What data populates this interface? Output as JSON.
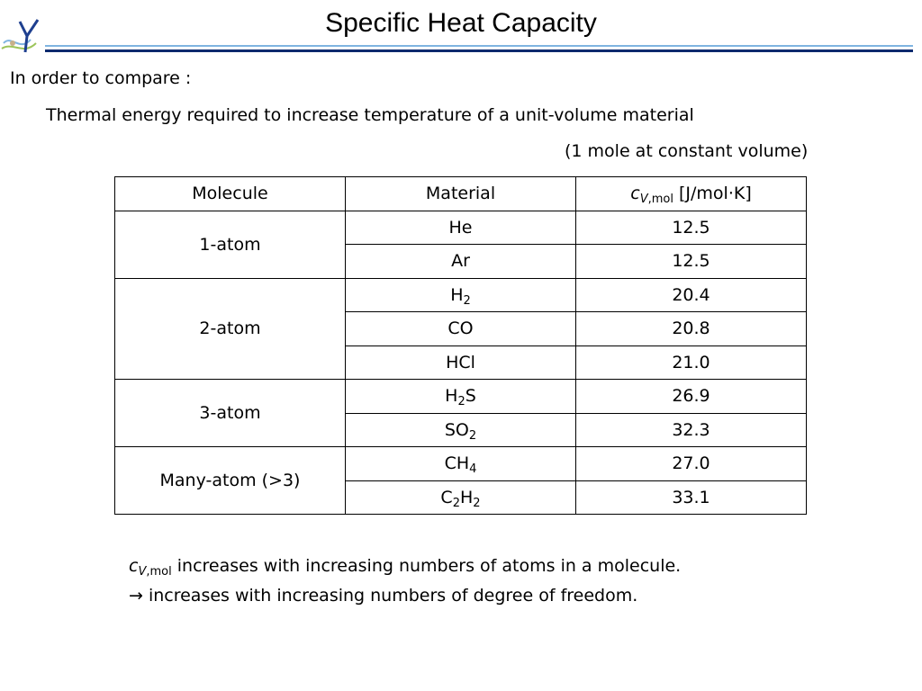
{
  "header": {
    "title": "Specific Heat Capacity",
    "rule_color_light": "#7fb4e0",
    "rule_color_dark": "#0d2a6e"
  },
  "intro": {
    "line1": "In order to compare :",
    "line2": "Thermal energy required to increase temperature of a unit-volume material",
    "line3": "(1 mole at constant volume)"
  },
  "table": {
    "headers": {
      "molecule": "Molecule",
      "material": "Material",
      "cv_symbol": "c",
      "cv_subscript": "V,mol",
      "cv_unit": " [J/mol·K]"
    },
    "groups": [
      {
        "molecule": "1-atom",
        "rows": [
          {
            "material_parts": [
              {
                "t": "He"
              }
            ],
            "value": "12.5"
          },
          {
            "material_parts": [
              {
                "t": "Ar"
              }
            ],
            "value": "12.5"
          }
        ]
      },
      {
        "molecule": "2-atom",
        "rows": [
          {
            "material_parts": [
              {
                "t": "H"
              },
              {
                "s": "2"
              }
            ],
            "value": "20.4"
          },
          {
            "material_parts": [
              {
                "t": "CO"
              }
            ],
            "value": "20.8"
          },
          {
            "material_parts": [
              {
                "t": "HCl"
              }
            ],
            "value": "21.0"
          }
        ]
      },
      {
        "molecule": "3-atom",
        "rows": [
          {
            "material_parts": [
              {
                "t": "H"
              },
              {
                "s": "2"
              },
              {
                "t": "S"
              }
            ],
            "value": "26.9"
          },
          {
            "material_parts": [
              {
                "t": "SO"
              },
              {
                "s": "2"
              }
            ],
            "value": "32.3"
          }
        ]
      },
      {
        "molecule": "Many-atom (>3)",
        "rows": [
          {
            "material_parts": [
              {
                "t": "CH"
              },
              {
                "s": "4"
              }
            ],
            "value": "27.0"
          },
          {
            "material_parts": [
              {
                "t": "C"
              },
              {
                "s": "2"
              },
              {
                "t": "H"
              },
              {
                "s": "2"
              }
            ],
            "value": "33.1"
          }
        ]
      }
    ]
  },
  "notes": {
    "note1_symbol": "c",
    "note1_subscript": "V,mol",
    "note1_text": " increases with increasing numbers of atoms in a molecule.",
    "note2_arrow": "→",
    "note2_text": " increases with increasing numbers of degree of freedom."
  }
}
